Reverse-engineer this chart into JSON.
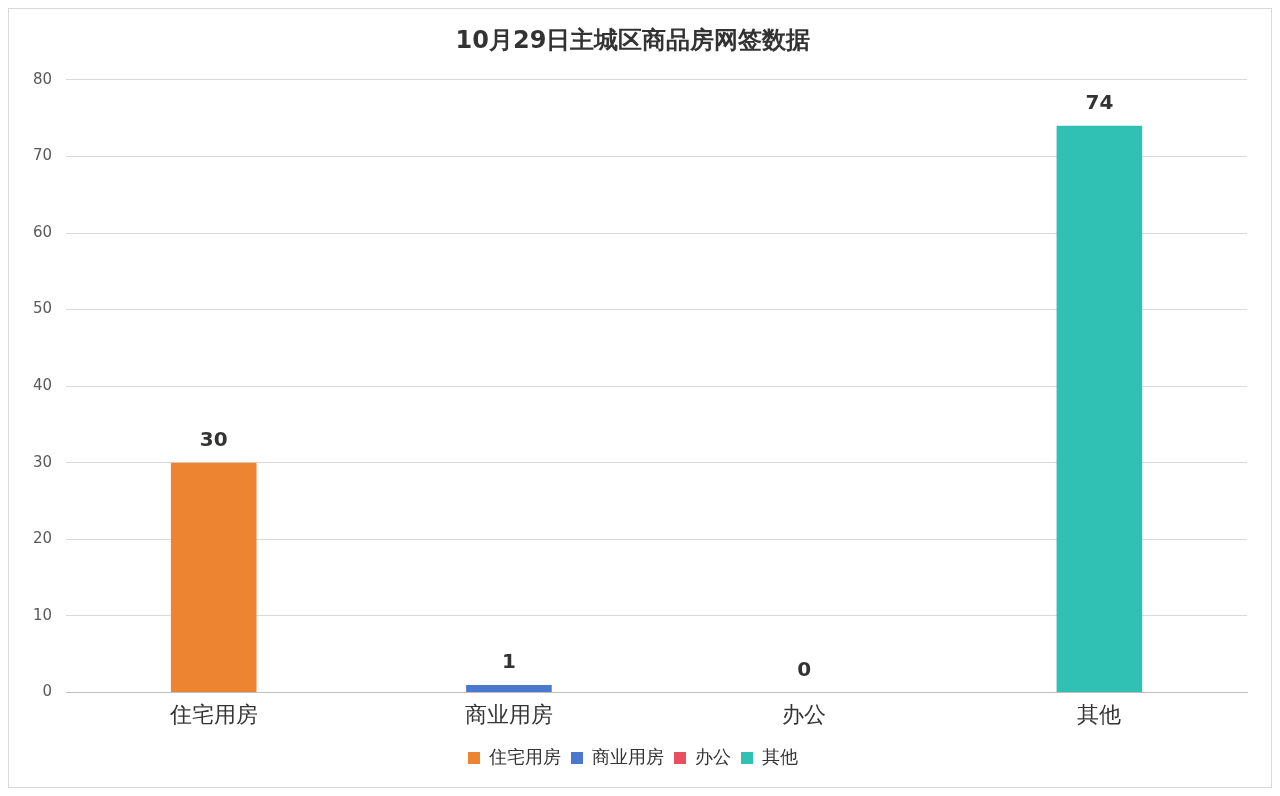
{
  "chart_data": {
    "type": "bar",
    "title": "10月29日主城区商品房网签数据",
    "categories": [
      "住宅用房",
      "商业用房",
      "办公",
      "其他"
    ],
    "series": [
      {
        "name": "住宅用房",
        "color": "#ed8432",
        "values": [
          30,
          null,
          null,
          null
        ]
      },
      {
        "name": "商业用房",
        "color": "#4a78cf",
        "values": [
          null,
          1,
          null,
          null
        ]
      },
      {
        "name": "办公",
        "color": "#e8505f",
        "values": [
          null,
          null,
          0,
          null
        ]
      },
      {
        "name": "其他",
        "color": "#30c0b4",
        "values": [
          null,
          null,
          null,
          74
        ]
      }
    ],
    "ylim": [
      0,
      80
    ],
    "yticks": [
      0,
      10,
      20,
      30,
      40,
      50,
      60,
      70,
      80
    ],
    "grid": "y",
    "legend": "bottom",
    "data_labels": true
  }
}
